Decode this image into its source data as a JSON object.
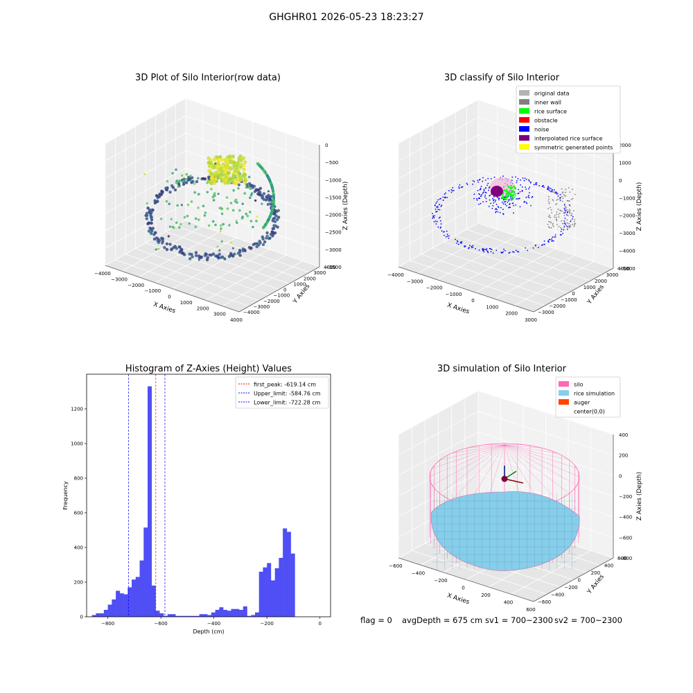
{
  "figure": {
    "suptitle": "GHGHR01 2026-05-23 18:23:27"
  },
  "footer": {
    "flag": "flag = 0",
    "avg_depth": "avgDepth = 675 cm",
    "sv1": "sv1 = 700~2300",
    "sv2": "sv2 = 700~2300"
  },
  "colors": {
    "original": "#b3b3b3",
    "inner_wall": "#808080",
    "rice_surface": "#00ff00",
    "obstacle": "#ff0000",
    "noise": "#0000ff",
    "interp": "#800080",
    "sym": "#ffff00",
    "silo": "#ff69b4",
    "rice_sim": "#87ceeb",
    "auger": "#ff4500",
    "hist_bar": "#4f4ff5",
    "peak_line": "#ff0000",
    "limit_line": "#0000ff"
  },
  "chart_data": [
    {
      "type": "scatter3d",
      "title": "3D Plot of Silo Interior(row data)",
      "xlabel": "X Axies",
      "ylabel": "Y Axies",
      "zlabel": "Z Axies (Depth)",
      "xticks": [
        "−4000",
        "−3000",
        "−2000",
        "−1000",
        "0",
        "1000",
        "2000",
        "3000",
        "4000"
      ],
      "yticks": [
        "−4000",
        "−3000",
        "−2000",
        "−1000",
        "0",
        "1000",
        "2000",
        "3000",
        "4000"
      ],
      "zticks": [
        "−3500",
        "−3000",
        "−2500",
        "−2000",
        "−1500",
        "−1000",
        "−500",
        "0"
      ],
      "colormap": "viridis by depth"
    },
    {
      "type": "scatter3d",
      "title": "3D classify of Silo Interior",
      "xlabel": "X Axies",
      "ylabel": "Y Axies",
      "zlabel": "Z Axies (Depth)",
      "xticks": [
        "−4000",
        "−3000",
        "−2000",
        "−1000",
        "0",
        "1000",
        "2000",
        "3000"
      ],
      "yticks": [
        "−3000",
        "−2000",
        "−1000",
        "0",
        "1000",
        "2000",
        "3000",
        "4000"
      ],
      "zticks": [
        "−5000",
        "−4000",
        "−3000",
        "−2000",
        "−1000",
        "0",
        "1000",
        "2000"
      ],
      "legend": [
        "original data",
        "inner wall",
        "rice surface",
        "obstacle",
        "noise",
        "interpolated rice surface",
        "symmetric generated points"
      ],
      "legend_loc": "upper right"
    },
    {
      "type": "bar",
      "title": "Histogram of Z-Axies (Height) Values",
      "xlabel": "Depth (cm)",
      "ylabel": "Frequency",
      "xlim": [
        -880,
        40
      ],
      "ylim": [
        0,
        1400
      ],
      "xticks": [
        -800,
        -600,
        -400,
        -200,
        0
      ],
      "yticks": [
        0,
        200,
        400,
        600,
        800,
        1000,
        1200
      ],
      "bin_start": -860,
      "bin_width": 15,
      "values": [
        10,
        20,
        20,
        40,
        70,
        100,
        150,
        135,
        130,
        170,
        215,
        230,
        325,
        515,
        1330,
        180,
        35,
        20,
        5,
        15,
        15,
        5,
        5,
        5,
        5,
        5,
        5,
        15,
        15,
        10,
        25,
        40,
        55,
        40,
        35,
        45,
        45,
        40,
        60,
        5,
        10,
        25,
        260,
        285,
        310,
        210,
        280,
        340,
        510,
        490,
        365
      ],
      "lines": [
        {
          "name": "first_peak: -619.14 cm",
          "x": -619.14,
          "color": "red"
        },
        {
          "name": "Upper_limit: -584.76 cm",
          "x": -584.76,
          "color": "blue"
        },
        {
          "name": "Lower_limit: -722.28 cm",
          "x": -722.28,
          "color": "blue"
        }
      ],
      "legend_loc": "upper right"
    },
    {
      "type": "surface3d",
      "title": "3D simulation of Silo Interior",
      "xlabel": "X Axies",
      "ylabel": "Y Axies",
      "zlabel": "Z Axies (Depth)",
      "xticks": [
        "−600",
        "−400",
        "−200",
        "0",
        "200",
        "400",
        "600"
      ],
      "yticks": [
        "−600",
        "−400",
        "−200",
        "0",
        "200",
        "400",
        "600"
      ],
      "zticks": [
        "−800",
        "−600",
        "−400",
        "−200",
        "0",
        "200",
        "400"
      ],
      "legend": [
        "silo",
        "rice simulation",
        "auger",
        "center(0,0)"
      ],
      "legend_loc": "upper right"
    }
  ]
}
